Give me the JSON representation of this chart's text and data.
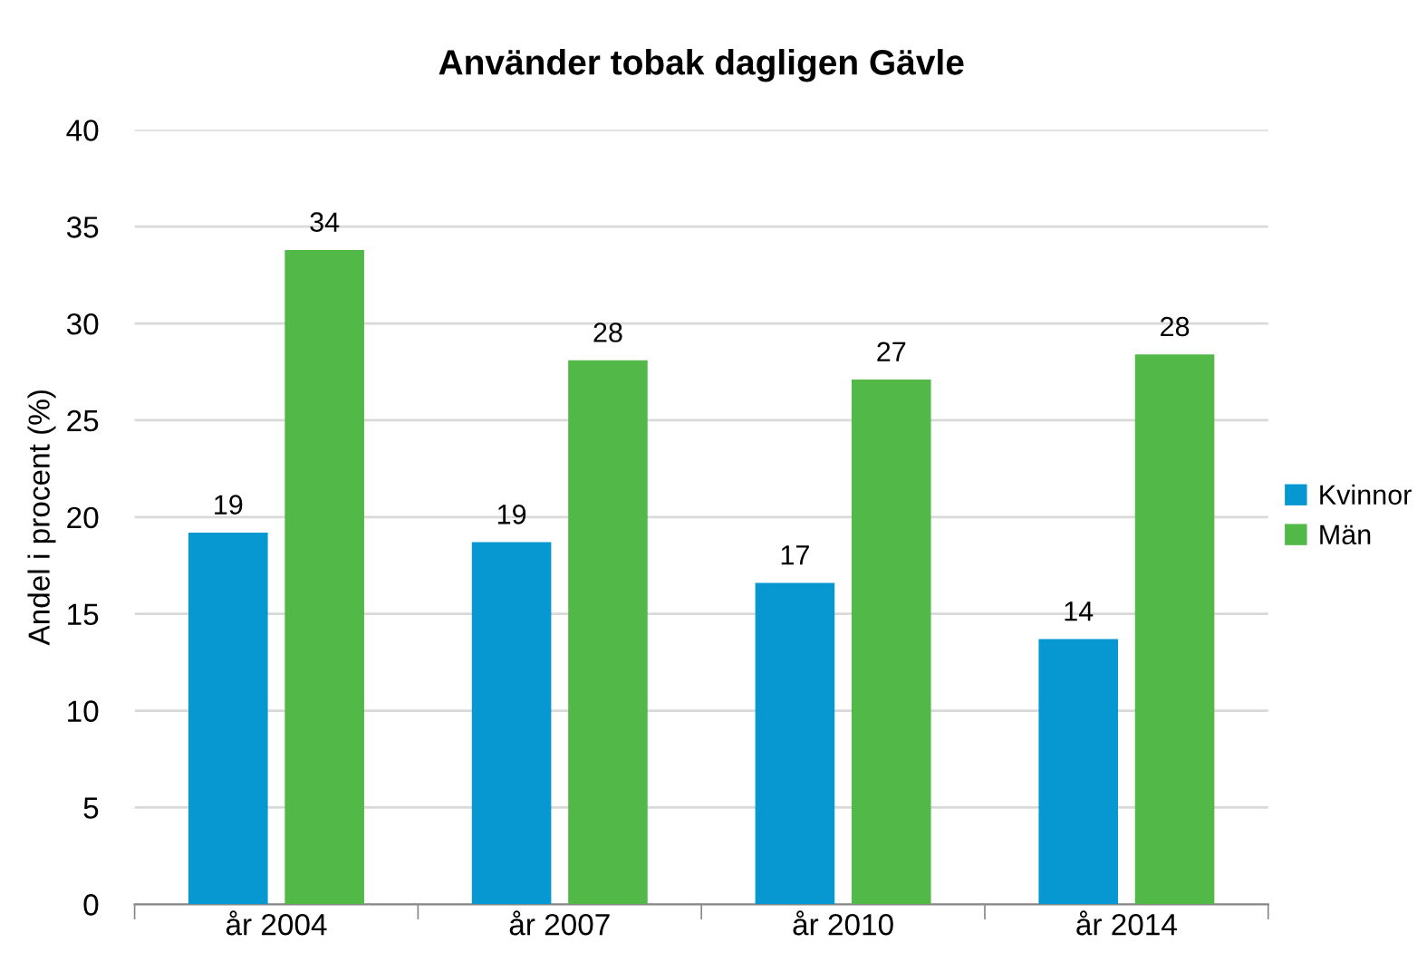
{
  "chart_data": {
    "type": "bar",
    "title": "Använder tobak dagligen Gävle",
    "ylabel": "Andel i procent (%)",
    "categories": [
      "år 2004",
      "år 2007",
      "år 2010",
      "år 2014"
    ],
    "series": [
      {
        "name": "Kvinnor",
        "color": "#0798d2",
        "values": [
          19.2,
          18.7,
          16.6,
          13.7
        ],
        "value_labels": [
          "19",
          "19",
          "17",
          "14"
        ]
      },
      {
        "name": "Män",
        "color": "#52b848",
        "values": [
          33.8,
          28.1,
          27.1,
          28.4
        ],
        "value_labels": [
          "34",
          "28",
          "27",
          "28"
        ]
      }
    ],
    "ylim": [
      0,
      40
    ],
    "yticks": [
      0,
      5,
      10,
      15,
      20,
      25,
      30,
      35,
      40
    ],
    "grid": "y",
    "legend": "right"
  }
}
